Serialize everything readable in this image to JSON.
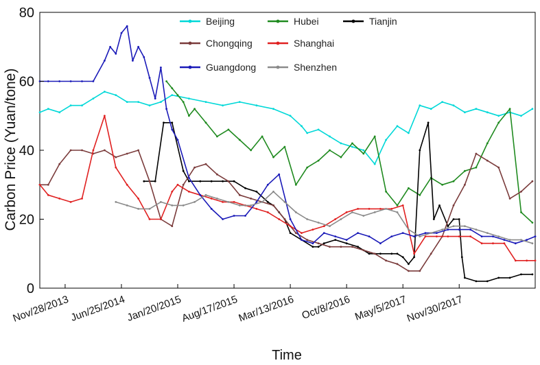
{
  "chart_data": {
    "type": "line",
    "xlabel": "Time",
    "ylabel": "Carbon Price (Yuan/tone)",
    "x_ticks": [
      "Nov/28/2013",
      "Jun/25/2014",
      "Jan/20/2015",
      "Aug/17/2015",
      "Mar/13/2016",
      "Oct/8/2016",
      "May/5/2017",
      "Nov/30/2017"
    ],
    "x_tick_index": [
      0,
      1,
      2,
      3,
      4,
      5,
      6,
      7
    ],
    "x_range": [
      -0.45,
      8.35
    ],
    "y_ticks": [
      0,
      20,
      40,
      60,
      80
    ],
    "ylim": [
      0,
      80
    ],
    "legend_position": "top",
    "series": [
      {
        "name": "Beijing",
        "color": "#00d8d8",
        "x": [
          -0.45,
          -0.3,
          -0.1,
          0.1,
          0.3,
          0.5,
          0.7,
          0.9,
          1.1,
          1.3,
          1.5,
          1.7,
          1.9,
          2.2,
          2.5,
          2.8,
          3.1,
          3.4,
          3.7,
          4.0,
          4.2,
          4.3,
          4.5,
          4.7,
          4.9,
          5.1,
          5.3,
          5.5,
          5.7,
          5.9,
          6.1,
          6.3,
          6.5,
          6.7,
          6.9,
          7.1,
          7.3,
          7.5,
          7.7,
          7.9,
          8.1,
          8.3
        ],
        "values": [
          51,
          52,
          51,
          53,
          53,
          55,
          57,
          56,
          54,
          54,
          53,
          54,
          56,
          55,
          54,
          53,
          54,
          53,
          52,
          50,
          47,
          45,
          46,
          44,
          42,
          41,
          40,
          36,
          43,
          47,
          45,
          53,
          52,
          54,
          53,
          51,
          52,
          51,
          50,
          51,
          50,
          52
        ]
      },
      {
        "name": "Hubei",
        "color": "#1f8a1f",
        "x": [
          1.8,
          1.9,
          2.0,
          2.1,
          2.2,
          2.3,
          2.5,
          2.7,
          2.9,
          3.1,
          3.3,
          3.5,
          3.7,
          3.9,
          4.1,
          4.3,
          4.5,
          4.7,
          4.9,
          5.1,
          5.3,
          5.5,
          5.7,
          5.9,
          6.1,
          6.3,
          6.5,
          6.7,
          6.9,
          7.1,
          7.3,
          7.5,
          7.7,
          7.9,
          8.1,
          8.3
        ],
        "values": [
          60,
          58,
          56,
          54,
          50,
          52,
          48,
          44,
          46,
          43,
          40,
          44,
          38,
          41,
          30,
          35,
          37,
          40,
          38,
          42,
          39,
          44,
          28,
          24,
          29,
          27,
          32,
          30,
          31,
          34,
          35,
          42,
          48,
          52,
          22,
          19
        ]
      },
      {
        "name": "Tianjin",
        "color": "#000000",
        "x": [
          1.4,
          1.6,
          1.75,
          1.9,
          2.1,
          2.2,
          2.4,
          2.6,
          2.8,
          3.0,
          3.2,
          3.4,
          3.6,
          3.7,
          3.8,
          3.9,
          4.0,
          4.2,
          4.4,
          4.5,
          4.6,
          4.8,
          5.0,
          5.2,
          5.4,
          5.6,
          5.8,
          5.9,
          6.0,
          6.1,
          6.2,
          6.3,
          6.45,
          6.55,
          6.65,
          6.8,
          6.9,
          7.0,
          7.05,
          7.1,
          7.3,
          7.5,
          7.7,
          7.9,
          8.1,
          8.3
        ],
        "values": [
          31,
          31,
          48,
          48,
          34,
          31,
          31,
          31,
          31,
          31,
          29,
          28,
          25,
          24,
          22,
          20,
          16,
          14,
          12,
          12,
          13,
          14,
          13,
          12,
          10,
          10,
          10,
          10,
          9,
          7,
          9,
          40,
          48,
          20,
          24,
          18,
          20,
          20,
          9,
          3,
          2,
          2,
          3,
          3,
          4,
          4
        ]
      },
      {
        "name": "Chongqing",
        "color": "#7a3b3b",
        "x": [
          -0.45,
          -0.3,
          -0.1,
          0.1,
          0.3,
          0.5,
          0.7,
          0.9,
          1.1,
          1.3,
          1.5,
          1.7,
          1.9,
          2.1,
          2.3,
          2.5,
          2.7,
          2.9,
          3.1,
          3.3,
          3.5,
          3.7,
          3.9,
          4.1,
          4.3,
          4.5,
          4.7,
          4.9,
          5.1,
          5.3,
          5.5,
          5.7,
          5.9,
          6.1,
          6.3,
          6.5,
          6.7,
          6.9,
          7.1,
          7.3,
          7.5,
          7.7,
          7.9,
          8.1,
          8.3
        ],
        "values": [
          30,
          30,
          36,
          40,
          40,
          39,
          40,
          38,
          39,
          40,
          31,
          20,
          18,
          30,
          35,
          36,
          33,
          31,
          27,
          26,
          25,
          24,
          20,
          16,
          14,
          13,
          12,
          12,
          12,
          11,
          10,
          8,
          7,
          5,
          5,
          10,
          15,
          24,
          30,
          39,
          37,
          35,
          26,
          28,
          31
        ]
      },
      {
        "name": "Shanghai",
        "color": "#e02020",
        "x": [
          -0.45,
          -0.3,
          -0.1,
          0.1,
          0.3,
          0.5,
          0.7,
          0.9,
          1.1,
          1.3,
          1.5,
          1.7,
          1.9,
          2.0,
          2.2,
          2.4,
          2.6,
          2.8,
          3.0,
          3.2,
          3.4,
          3.6,
          3.8,
          4.0,
          4.2,
          4.4,
          4.6,
          4.8,
          5.0,
          5.2,
          5.4,
          5.6,
          5.8,
          6.0,
          6.2,
          6.4,
          6.6,
          6.8,
          7.0,
          7.2,
          7.4,
          7.6,
          7.8,
          8.0,
          8.2,
          8.35
        ],
        "values": [
          30,
          27,
          26,
          25,
          26,
          40,
          50,
          35,
          30,
          26,
          20,
          20,
          28,
          30,
          28,
          27,
          26,
          25,
          25,
          24,
          23,
          22,
          20,
          18,
          16,
          17,
          18,
          20,
          22,
          23,
          23,
          23,
          23,
          24,
          10,
          15,
          15,
          15,
          15,
          15,
          13,
          13,
          13,
          8,
          8,
          8
        ]
      },
      {
        "name": "Guangdong",
        "color": "#1a1ab8",
        "x": [
          -0.45,
          -0.3,
          -0.1,
          0.1,
          0.3,
          0.5,
          0.7,
          0.8,
          0.9,
          1.0,
          1.1,
          1.2,
          1.3,
          1.4,
          1.5,
          1.6,
          1.7,
          1.8,
          1.9,
          2.0,
          2.2,
          2.4,
          2.6,
          2.8,
          3.0,
          3.2,
          3.4,
          3.6,
          3.8,
          4.0,
          4.2,
          4.4,
          4.6,
          4.8,
          5.0,
          5.2,
          5.4,
          5.6,
          5.8,
          6.0,
          6.2,
          6.4,
          6.6,
          6.8,
          7.0,
          7.2,
          7.4,
          7.6,
          7.8,
          8.0,
          8.2,
          8.35
        ],
        "values": [
          60,
          60,
          60,
          60,
          60,
          60,
          66,
          70,
          68,
          74,
          76,
          66,
          70,
          67,
          61,
          55,
          64,
          52,
          46,
          43,
          32,
          27,
          23,
          20,
          21,
          21,
          25,
          30,
          33,
          20,
          14,
          13,
          16,
          15,
          14,
          16,
          15,
          13,
          15,
          16,
          15,
          16,
          16,
          17,
          17,
          17,
          15,
          15,
          14,
          13,
          14,
          15
        ]
      },
      {
        "name": "Shenzhen",
        "color": "#8a8a8a",
        "x": [
          0.9,
          1.1,
          1.3,
          1.5,
          1.7,
          1.9,
          2.1,
          2.3,
          2.5,
          2.7,
          2.9,
          3.1,
          3.3,
          3.5,
          3.7,
          3.9,
          4.1,
          4.3,
          4.5,
          4.7,
          4.9,
          5.1,
          5.3,
          5.5,
          5.7,
          5.9,
          6.1,
          6.3,
          6.5,
          6.7,
          6.9,
          7.1,
          7.3,
          7.5,
          7.7,
          7.9,
          8.1,
          8.3
        ],
        "values": [
          25,
          24,
          23,
          23,
          25,
          24,
          24,
          25,
          27,
          26,
          25,
          24,
          24,
          25,
          28,
          25,
          22,
          20,
          19,
          18,
          20,
          22,
          21,
          22,
          23,
          22,
          17,
          15,
          16,
          17,
          18,
          18,
          17,
          16,
          15,
          14,
          14,
          13
        ]
      }
    ]
  }
}
